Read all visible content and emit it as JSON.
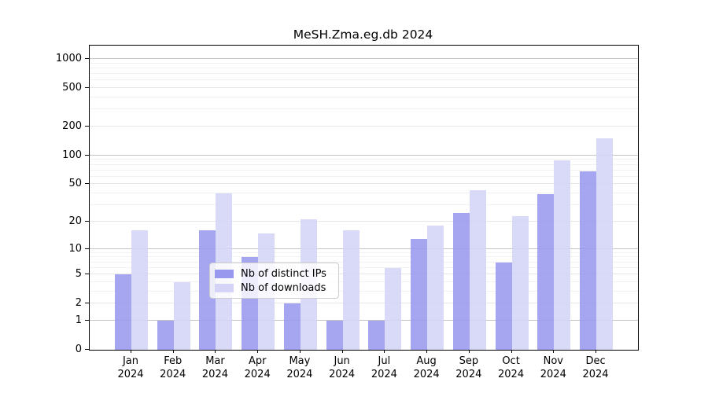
{
  "title": "MeSH.Zma.eg.db 2024",
  "chart_data": {
    "type": "bar",
    "title": "MeSH.Zma.eg.db 2024",
    "categories": [
      "Jan",
      "Feb",
      "Mar",
      "Apr",
      "May",
      "Jun",
      "Jul",
      "Aug",
      "Sep",
      "Oct",
      "Nov",
      "Dec"
    ],
    "year": "2024",
    "series": [
      {
        "name": "Nb of distinct IPs",
        "color": "#9898ee",
        "values": [
          5,
          1,
          16,
          8,
          2,
          1,
          1,
          13,
          25,
          7,
          39,
          68
        ]
      },
      {
        "name": "Nb of downloads",
        "color": "#d4d4f7",
        "values": [
          16,
          4,
          40,
          15,
          21,
          16,
          6,
          18,
          43,
          23,
          89,
          150
        ]
      }
    ],
    "yscale": "log1p",
    "yticks": [
      0,
      1,
      2,
      5,
      10,
      20,
      50,
      100,
      200,
      500,
      1000
    ],
    "ytick_labels": [
      "0",
      "1",
      "2",
      "5",
      "10",
      "20",
      "50",
      "100",
      "200",
      "500",
      "1000"
    ],
    "ylim": [
      0,
      1380
    ],
    "grid": true,
    "legend_position": "lower center",
    "colors": {
      "major_grid": "#c4c4c4",
      "mid_grid": "#e7e7e7",
      "minor_grid": "#f1f1f1",
      "axis": "#000000"
    }
  }
}
